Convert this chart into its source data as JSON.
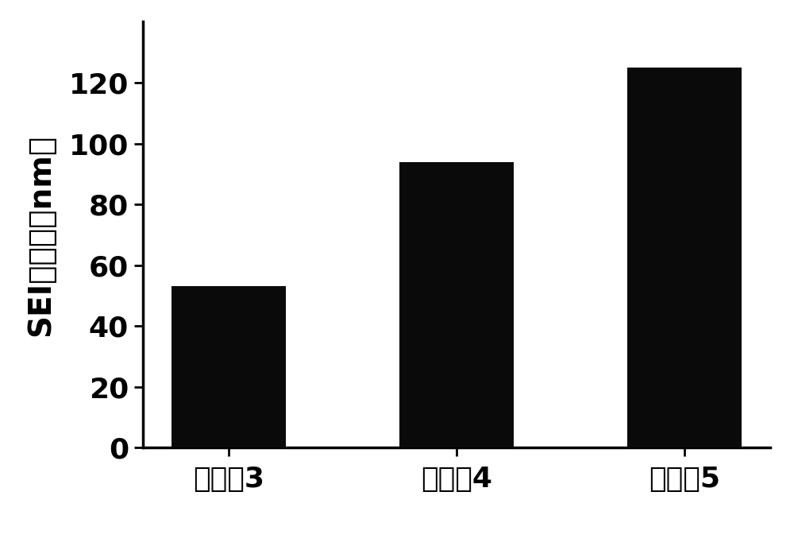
{
  "categories": [
    "实施佹3",
    "实施佹4",
    "实施佹5"
  ],
  "values": [
    53,
    94,
    125
  ],
  "bar_color": "#0a0a0a",
  "ylabel": "SEI膜厚度（nm）",
  "ylim": [
    0,
    140
  ],
  "yticks": [
    0,
    20,
    40,
    60,
    80,
    100,
    120
  ],
  "bar_width": 0.5,
  "background_color": "#ffffff",
  "tick_fontsize": 26,
  "label_fontsize": 28,
  "spine_linewidth": 2.5
}
